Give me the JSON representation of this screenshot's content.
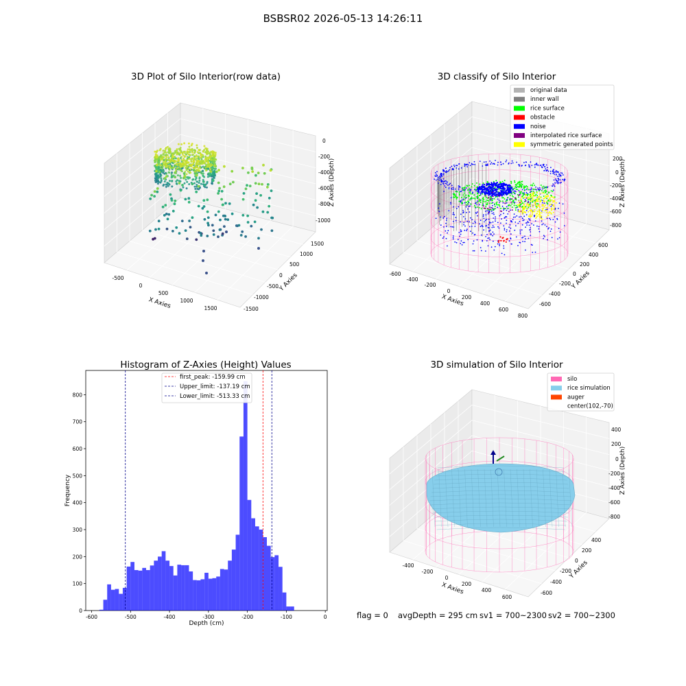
{
  "suptitle": "BSBSR02 2026-05-13 14:26:11",
  "panels": {
    "raw": {
      "title": "3D Plot of Silo Interior(row data)",
      "xlabel": "X Axies",
      "ylabel": "Y Axies",
      "zlabel": "Z Axies (Depth)",
      "xticks": [
        "-500",
        "0",
        "500",
        "1000",
        "1500"
      ],
      "yticks": [
        "1500",
        "1000",
        "500",
        "0",
        "-500",
        "-1000",
        "-1500"
      ],
      "zticks": [
        "0",
        "-200",
        "-400",
        "-600",
        "-800",
        "-1000"
      ]
    },
    "classify": {
      "title": "3D classify of Silo Interior",
      "xlabel": "X Axies",
      "ylabel": "Y Axies",
      "zlabel": "Z Axies (Depth)",
      "xticks": [
        "-600",
        "-400",
        "-200",
        "0",
        "200",
        "400",
        "600",
        "800"
      ],
      "yticks": [
        "600",
        "400",
        "200",
        "0",
        "-200",
        "-400",
        "-600"
      ],
      "zticks": [
        "200",
        "0",
        "-200",
        "-400",
        "-600",
        "-800"
      ],
      "legend": [
        {
          "label": "original data",
          "color": "#b3b3b3"
        },
        {
          "label": "inner wall",
          "color": "#808080"
        },
        {
          "label": "rice surface",
          "color": "#00ff00"
        },
        {
          "label": "obstacle",
          "color": "#ff0000"
        },
        {
          "label": "noise",
          "color": "#0000ff"
        },
        {
          "label": "interpolated rice surface",
          "color": "#800080"
        },
        {
          "label": "symmetric generated points",
          "color": "#ffff00"
        }
      ]
    },
    "simulation": {
      "title": "3D simulation of Silo Interior",
      "xlabel": "X Axies",
      "ylabel": "Y Axies",
      "zlabel": "Z Axies (Depth)",
      "xticks": [
        "-400",
        "-200",
        "0",
        "200",
        "400",
        "600"
      ],
      "yticks": [
        "400",
        "200",
        "0",
        "-200",
        "-400",
        "-600"
      ],
      "zticks": [
        "400",
        "200",
        "0",
        "-200",
        "-400",
        "-600",
        "-800"
      ],
      "legend": [
        {
          "label": "silo",
          "color": "#ff69b4"
        },
        {
          "label": "rice simulation",
          "color": "#87ceeb"
        },
        {
          "label": "auger",
          "color": "#ff4500"
        },
        {
          "label": "center(102,-70)",
          "color": ""
        }
      ]
    }
  },
  "chart_data": {
    "type": "bar",
    "title": "Histogram of Z-Axies (Height) Values",
    "xlabel": "Depth (cm)",
    "ylabel": "Frequency",
    "xlim": [
      -615,
      5
    ],
    "ylim": [
      0,
      890
    ],
    "bin_start": -580,
    "bin_width": 10,
    "values": [
      3,
      40,
      97,
      77,
      80,
      62,
      84,
      163,
      180,
      150,
      148,
      158,
      150,
      167,
      185,
      200,
      220,
      185,
      165,
      130,
      170,
      168,
      168,
      145,
      113,
      112,
      116,
      140,
      118,
      120,
      126,
      154,
      152,
      185,
      226,
      281,
      645,
      850,
      410,
      342,
      312,
      300,
      272,
      240,
      198,
      205,
      162,
      67,
      15,
      15
    ],
    "color": "#0000ff",
    "xticks": [
      -600,
      -500,
      -400,
      -300,
      -200,
      -100,
      0
    ],
    "yticks": [
      0,
      100,
      200,
      300,
      400,
      500,
      600,
      700,
      800
    ],
    "vlines": [
      {
        "label": "first_peak: -159.99 cm",
        "x": -159.99,
        "color": "#ff0000"
      },
      {
        "label": "Upper_limit: -137.19 cm",
        "x": -137.19,
        "color": "#00008b"
      },
      {
        "label": "Lower_limit: -513.33 cm",
        "x": -513.33,
        "color": "#00008b"
      }
    ]
  },
  "footer": {
    "flag": "flag = 0",
    "avg": "avgDepth = 295 cm",
    "sv1": "sv1 = 700~2300",
    "sv2": "sv2 = 700~2300"
  }
}
